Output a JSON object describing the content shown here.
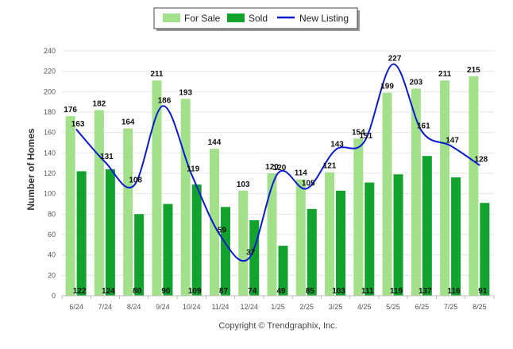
{
  "chart_data": {
    "type": "bar",
    "categories": [
      "6/24",
      "7/24",
      "8/24",
      "9/24",
      "10/24",
      "11/24",
      "12/24",
      "1/25",
      "2/25",
      "3/25",
      "4/25",
      "5/25",
      "6/25",
      "7/25",
      "8/25"
    ],
    "series": [
      {
        "name": "For Sale",
        "kind": "bar",
        "color": "#a3e08a",
        "values": [
          176,
          182,
          164,
          211,
          193,
          144,
          103,
          120,
          114,
          121,
          154,
          199,
          203,
          211,
          215
        ]
      },
      {
        "name": "Sold",
        "kind": "bar",
        "color": "#11a32e",
        "values": [
          122,
          124,
          80,
          90,
          109,
          87,
          74,
          49,
          85,
          103,
          111,
          119,
          137,
          116,
          91
        ]
      },
      {
        "name": "New Listing",
        "kind": "line",
        "color": "#0a19d6",
        "values": [
          163,
          131,
          108,
          186,
          119,
          59,
          37,
          120,
          105,
          143,
          151,
          227,
          161,
          147,
          128
        ]
      }
    ],
    "ylabel": "Number of Homes",
    "ylim": [
      0,
      240
    ],
    "yticks": [
      0,
      20,
      40,
      60,
      80,
      100,
      120,
      140,
      160,
      180,
      200,
      220,
      240
    ],
    "grid": true,
    "legend_position": "top-center",
    "footer": "Copyright © Trendgraphix, Inc."
  }
}
